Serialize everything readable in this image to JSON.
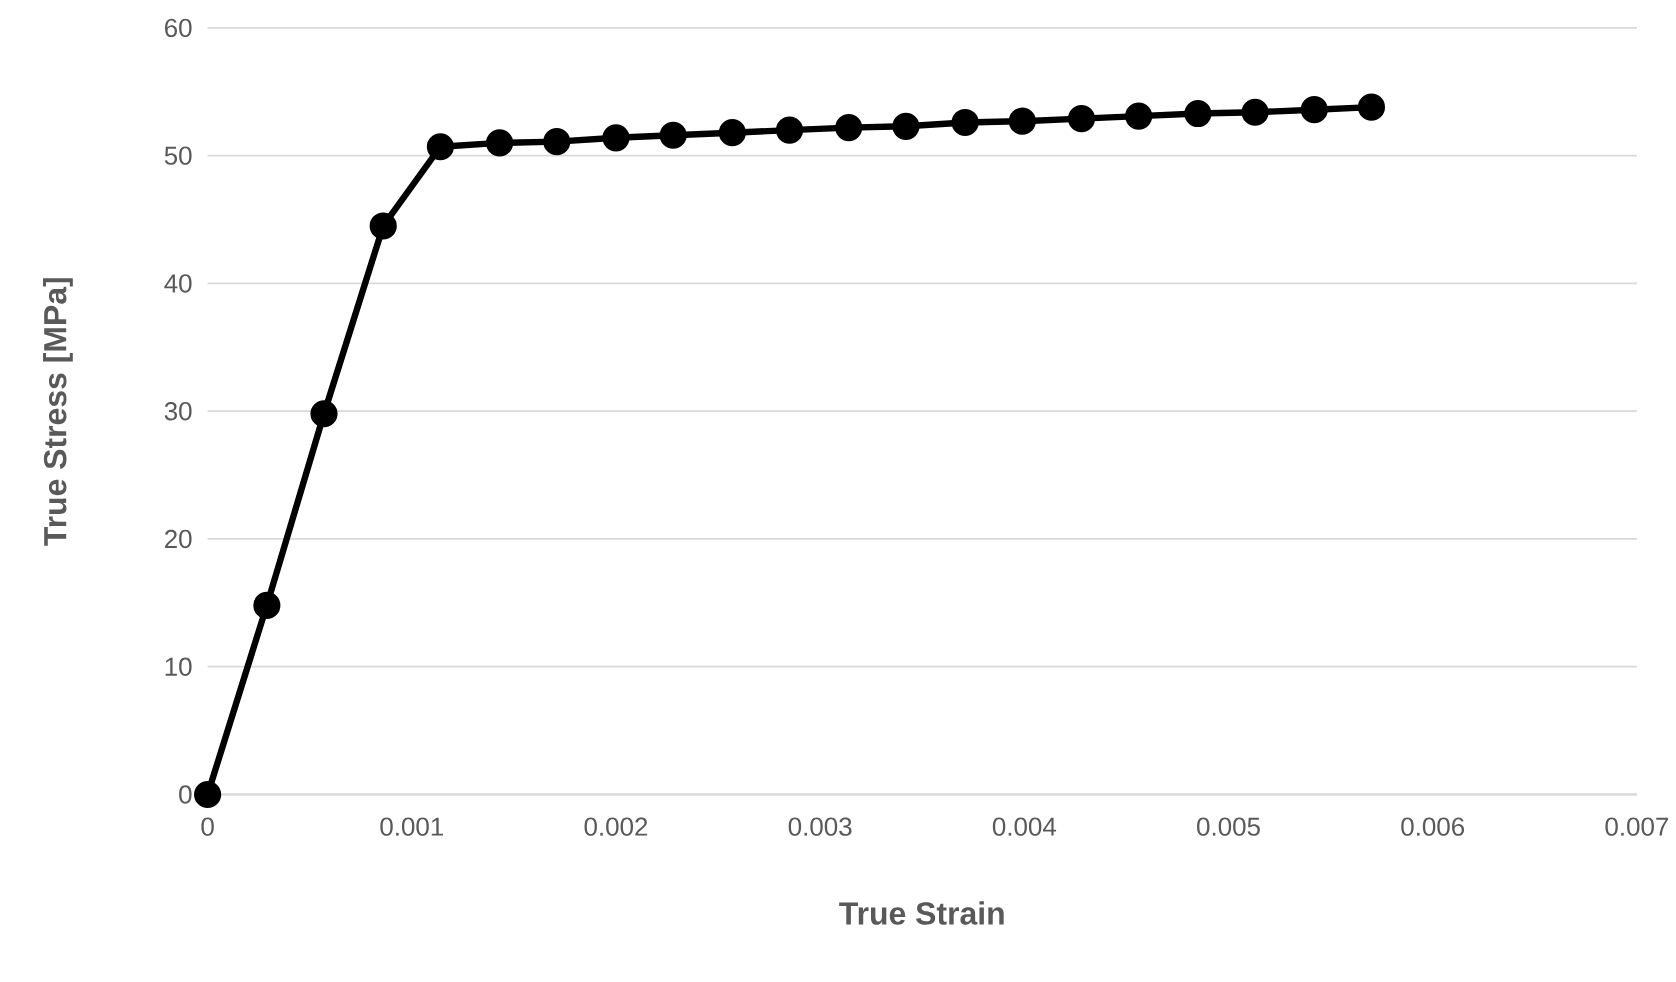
{
  "chart_data": {
    "type": "line",
    "xlabel": "True Strain",
    "ylabel": "True Stress [MPa]",
    "x": [
      0,
      0.00029,
      0.00057,
      0.00086,
      0.00114,
      0.00143,
      0.00171,
      0.002,
      0.00228,
      0.00257,
      0.00285,
      0.00314,
      0.00342,
      0.00371,
      0.00399,
      0.00428,
      0.00456,
      0.00485,
      0.00513,
      0.00542,
      0.0057
    ],
    "series": [
      {
        "color": "#000000",
        "values": [
          0,
          14.8,
          29.8,
          44.5,
          50.7,
          51.0,
          51.1,
          51.4,
          51.6,
          51.8,
          52.0,
          52.2,
          52.3,
          52.6,
          52.7,
          52.9,
          53.1,
          53.3,
          53.4,
          53.6,
          53.8
        ]
      }
    ],
    "xlim": [
      0,
      0.007
    ],
    "xticks": [
      0,
      0.001,
      0.002,
      0.003,
      0.004,
      0.005,
      0.006,
      0.007
    ],
    "ylim": [
      0,
      60
    ],
    "yticks": [
      0,
      10,
      20,
      30,
      40,
      50,
      60
    ],
    "grid": "y",
    "marker": "circle",
    "line_style": "solid"
  }
}
